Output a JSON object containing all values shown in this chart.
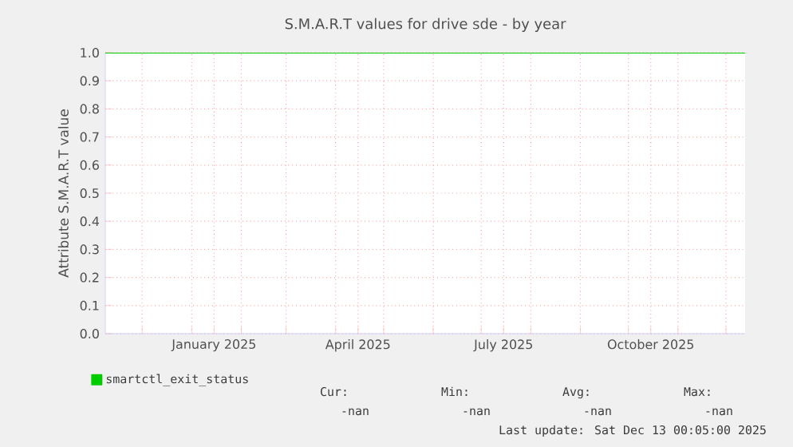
{
  "chart_data": {
    "type": "line",
    "title": "S.M.A.R.T values for drive sde - by year",
    "ylabel": "Attribute S.M.A.R.T value",
    "x": [
      "2024-11-08",
      "2025-12-13"
    ],
    "series": [
      {
        "name": "smartctl_exit_status",
        "color": "#00cc00",
        "values": [
          1.0,
          1.0
        ]
      }
    ],
    "xlim": [
      "2024-11-08",
      "2025-12-13"
    ],
    "xticks": [
      {
        "value": "2024-12-01",
        "label": null
      },
      {
        "value": "2025-01-01",
        "label": null
      },
      {
        "value": "2025-01-15",
        "label": "January 2025"
      },
      {
        "value": "2025-02-01",
        "label": null
      },
      {
        "value": "2025-03-01",
        "label": null
      },
      {
        "value": "2025-04-01",
        "label": null
      },
      {
        "value": "2025-04-15",
        "label": "April 2025"
      },
      {
        "value": "2025-05-01",
        "label": null
      },
      {
        "value": "2025-06-01",
        "label": null
      },
      {
        "value": "2025-07-01",
        "label": null
      },
      {
        "value": "2025-07-15",
        "label": "July 2025"
      },
      {
        "value": "2025-08-01",
        "label": null
      },
      {
        "value": "2025-09-01",
        "label": null
      },
      {
        "value": "2025-10-01",
        "label": null
      },
      {
        "value": "2025-10-15",
        "label": "October 2025"
      },
      {
        "value": "2025-11-01",
        "label": null
      },
      {
        "value": "2025-12-01",
        "label": null
      }
    ],
    "ylim": [
      0,
      1
    ],
    "yticks": [
      {
        "value": 0,
        "label": "0.0"
      },
      {
        "value": 0.1,
        "label": "0.1"
      },
      {
        "value": 0.2,
        "label": "0.2"
      },
      {
        "value": 0.3,
        "label": "0.3"
      },
      {
        "value": 0.4,
        "label": "0.4"
      },
      {
        "value": 0.5,
        "label": "0.5"
      },
      {
        "value": 0.6,
        "label": "0.6"
      },
      {
        "value": 0.7,
        "label": "0.7"
      },
      {
        "value": 0.8,
        "label": "0.8"
      },
      {
        "value": 0.9,
        "label": "0.9"
      },
      {
        "value": 1.0,
        "label": "1.0"
      }
    ],
    "grid": true,
    "legend": "bottom left",
    "marker": "none",
    "line_style": "solid",
    "annotations": [
      "Cur:",
      "Min:",
      "Avg:",
      "Max:",
      "-nan",
      "-nan",
      "-nan",
      "-nan",
      "Last update: Sat Dec 13 00:05:00 2025"
    ]
  }
}
